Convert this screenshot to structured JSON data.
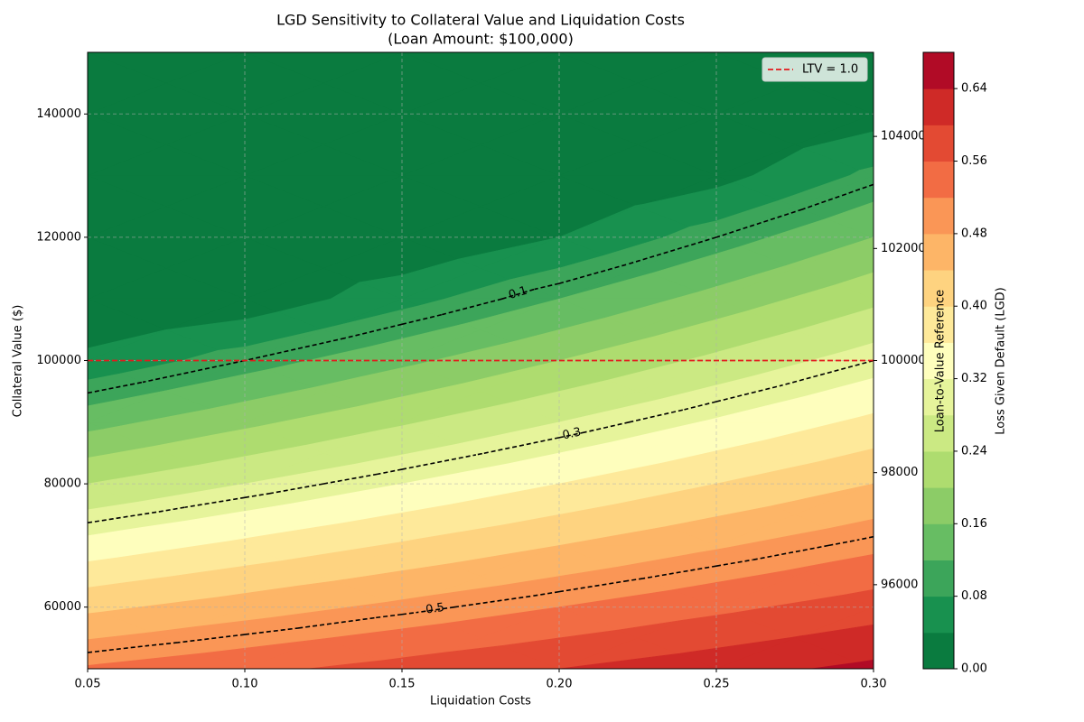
{
  "chart_data": {
    "type": "contourf",
    "title": "LGD Sensitivity to Collateral Value and Liquidation Costs",
    "subtitle": "(Loan Amount: $100,000)",
    "x_label": "Liquidation Costs",
    "y_label": "Collateral Value ($)",
    "y2_label": "Loan-to-Value Reference",
    "colorbar_label": "Loss Given Default (LGD)",
    "x": [
      0.05,
      0.1,
      0.15,
      0.2,
      0.25,
      0.3
    ],
    "y": [
      50000,
      60000,
      70000,
      80000,
      90000,
      100000,
      110000,
      120000,
      130000,
      140000,
      150000
    ],
    "z": [
      [
        0.525,
        0.55,
        0.575,
        0.6,
        0.625,
        0.65
      ],
      [
        0.43,
        0.46,
        0.49,
        0.52,
        0.55,
        0.58
      ],
      [
        0.335,
        0.37,
        0.405,
        0.44,
        0.475,
        0.51
      ],
      [
        0.24,
        0.28,
        0.32,
        0.36,
        0.4,
        0.44
      ],
      [
        0.145,
        0.19,
        0.235,
        0.28,
        0.325,
        0.37
      ],
      [
        0.05,
        0.1,
        0.15,
        0.2,
        0.25,
        0.3
      ],
      [
        0,
        0.01,
        0.065,
        0.12,
        0.175,
        0.23
      ],
      [
        0,
        0,
        0,
        0.04,
        0.1,
        0.16
      ],
      [
        0,
        0,
        0,
        0,
        0.025,
        0.09
      ],
      [
        0,
        0,
        0,
        0,
        0,
        0.02
      ],
      [
        0,
        0,
        0,
        0,
        0,
        0
      ]
    ],
    "levels": [
      0,
      0.04,
      0.08,
      0.12,
      0.16,
      0.2,
      0.24,
      0.28,
      0.32,
      0.36,
      0.4,
      0.44,
      0.48,
      0.52,
      0.56,
      0.6,
      0.64,
      0.68
    ],
    "colors": [
      "#0a7b3f",
      "#18914f",
      "#3ca55a",
      "#67bd63",
      "#8ccc67",
      "#aedc6f",
      "#cbe983",
      "#e6f49b",
      "#fefebd",
      "#fee99a",
      "#fed380",
      "#fdb567",
      "#fa9656",
      "#f26c44",
      "#e34a33",
      "#cf2a27",
      "#b10b26"
    ],
    "contour_levels": [
      0.1,
      0.3,
      0.5
    ],
    "contour_color": "black",
    "xlim": [
      0.05,
      0.3
    ],
    "xticks": [
      0.05,
      {
        "value": 0.1,
        "label": "0.10"
      },
      0.15,
      {
        "value": 0.2,
        "label": "0.20"
      },
      0.25,
      {
        "value": 0.3,
        "label": "0.30"
      }
    ],
    "ylim": [
      50000,
      150000
    ],
    "yticks": [
      60000,
      80000,
      100000,
      120000,
      140000
    ],
    "y2lim": [
      94500,
      105500
    ],
    "y2ticks": [
      96000,
      98000,
      100000,
      102000,
      104000
    ],
    "colorbar_lim": [
      0,
      0.68
    ],
    "colorbar_ticks": [
      {
        "value": 0,
        "label": "0.00"
      },
      0.08,
      0.16,
      0.24,
      0.32,
      {
        "value": 0.4,
        "label": "0.40"
      },
      0.48,
      0.56,
      0.64
    ],
    "reference_line": {
      "y": 100000,
      "label": "LTV = 1.0",
      "color": "#e31a1c"
    },
    "grid": true,
    "legend": "upper right"
  }
}
